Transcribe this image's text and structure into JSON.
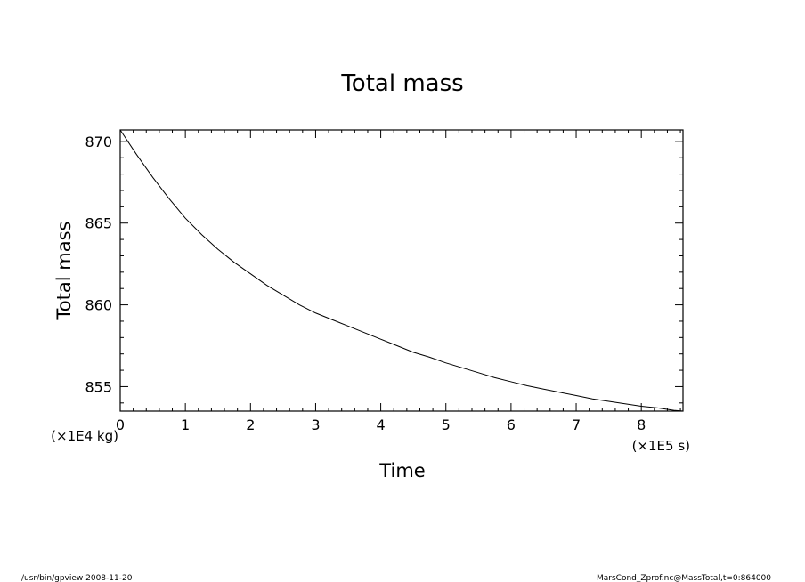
{
  "chart_data": {
    "type": "line",
    "title": "Total mass",
    "xlabel": "Time",
    "ylabel": "Total mass",
    "x_scale_label": "(×1E5 s)",
    "y_scale_label": "(×1E4 kg)",
    "xlim": [
      0,
      8.64
    ],
    "ylim": [
      853.5,
      870.7
    ],
    "xticks": [
      0,
      1,
      2,
      3,
      4,
      5,
      6,
      7,
      8
    ],
    "xtick_labels": [
      "0",
      "1",
      "2",
      "3",
      "4",
      "5",
      "6",
      "7",
      "8"
    ],
    "yticks": [
      855,
      860,
      865,
      870
    ],
    "ytick_labels": [
      "855",
      "860",
      "865",
      "870"
    ],
    "grid": false,
    "legend": "none",
    "line_color": "#000000",
    "series": [
      {
        "x": [
          0,
          0.25,
          0.5,
          0.75,
          1.0,
          1.25,
          1.5,
          1.75,
          2.0,
          2.25,
          2.5,
          2.75,
          3.0,
          3.25,
          3.5,
          3.75,
          4.0,
          4.25,
          4.5,
          4.75,
          5.0,
          5.25,
          5.5,
          5.75,
          6.0,
          6.25,
          6.5,
          6.75,
          7.0,
          7.25,
          7.5,
          7.75,
          8.0,
          8.25,
          8.5,
          8.64
        ],
        "values": [
          870.7,
          869.2,
          867.8,
          866.5,
          865.3,
          864.3,
          863.4,
          862.6,
          861.9,
          861.2,
          860.6,
          860.0,
          859.5,
          859.1,
          858.7,
          858.3,
          857.9,
          857.5,
          857.1,
          856.8,
          856.45,
          856.15,
          855.85,
          855.55,
          855.3,
          855.05,
          854.85,
          854.65,
          854.45,
          854.25,
          854.1,
          853.95,
          853.8,
          853.7,
          853.55,
          853.5
        ]
      }
    ]
  },
  "footer": {
    "left": "/usr/bin/gpview   2008-11-20",
    "right": "MarsCond_Zprof.nc@MassTotal,t=0:864000"
  }
}
